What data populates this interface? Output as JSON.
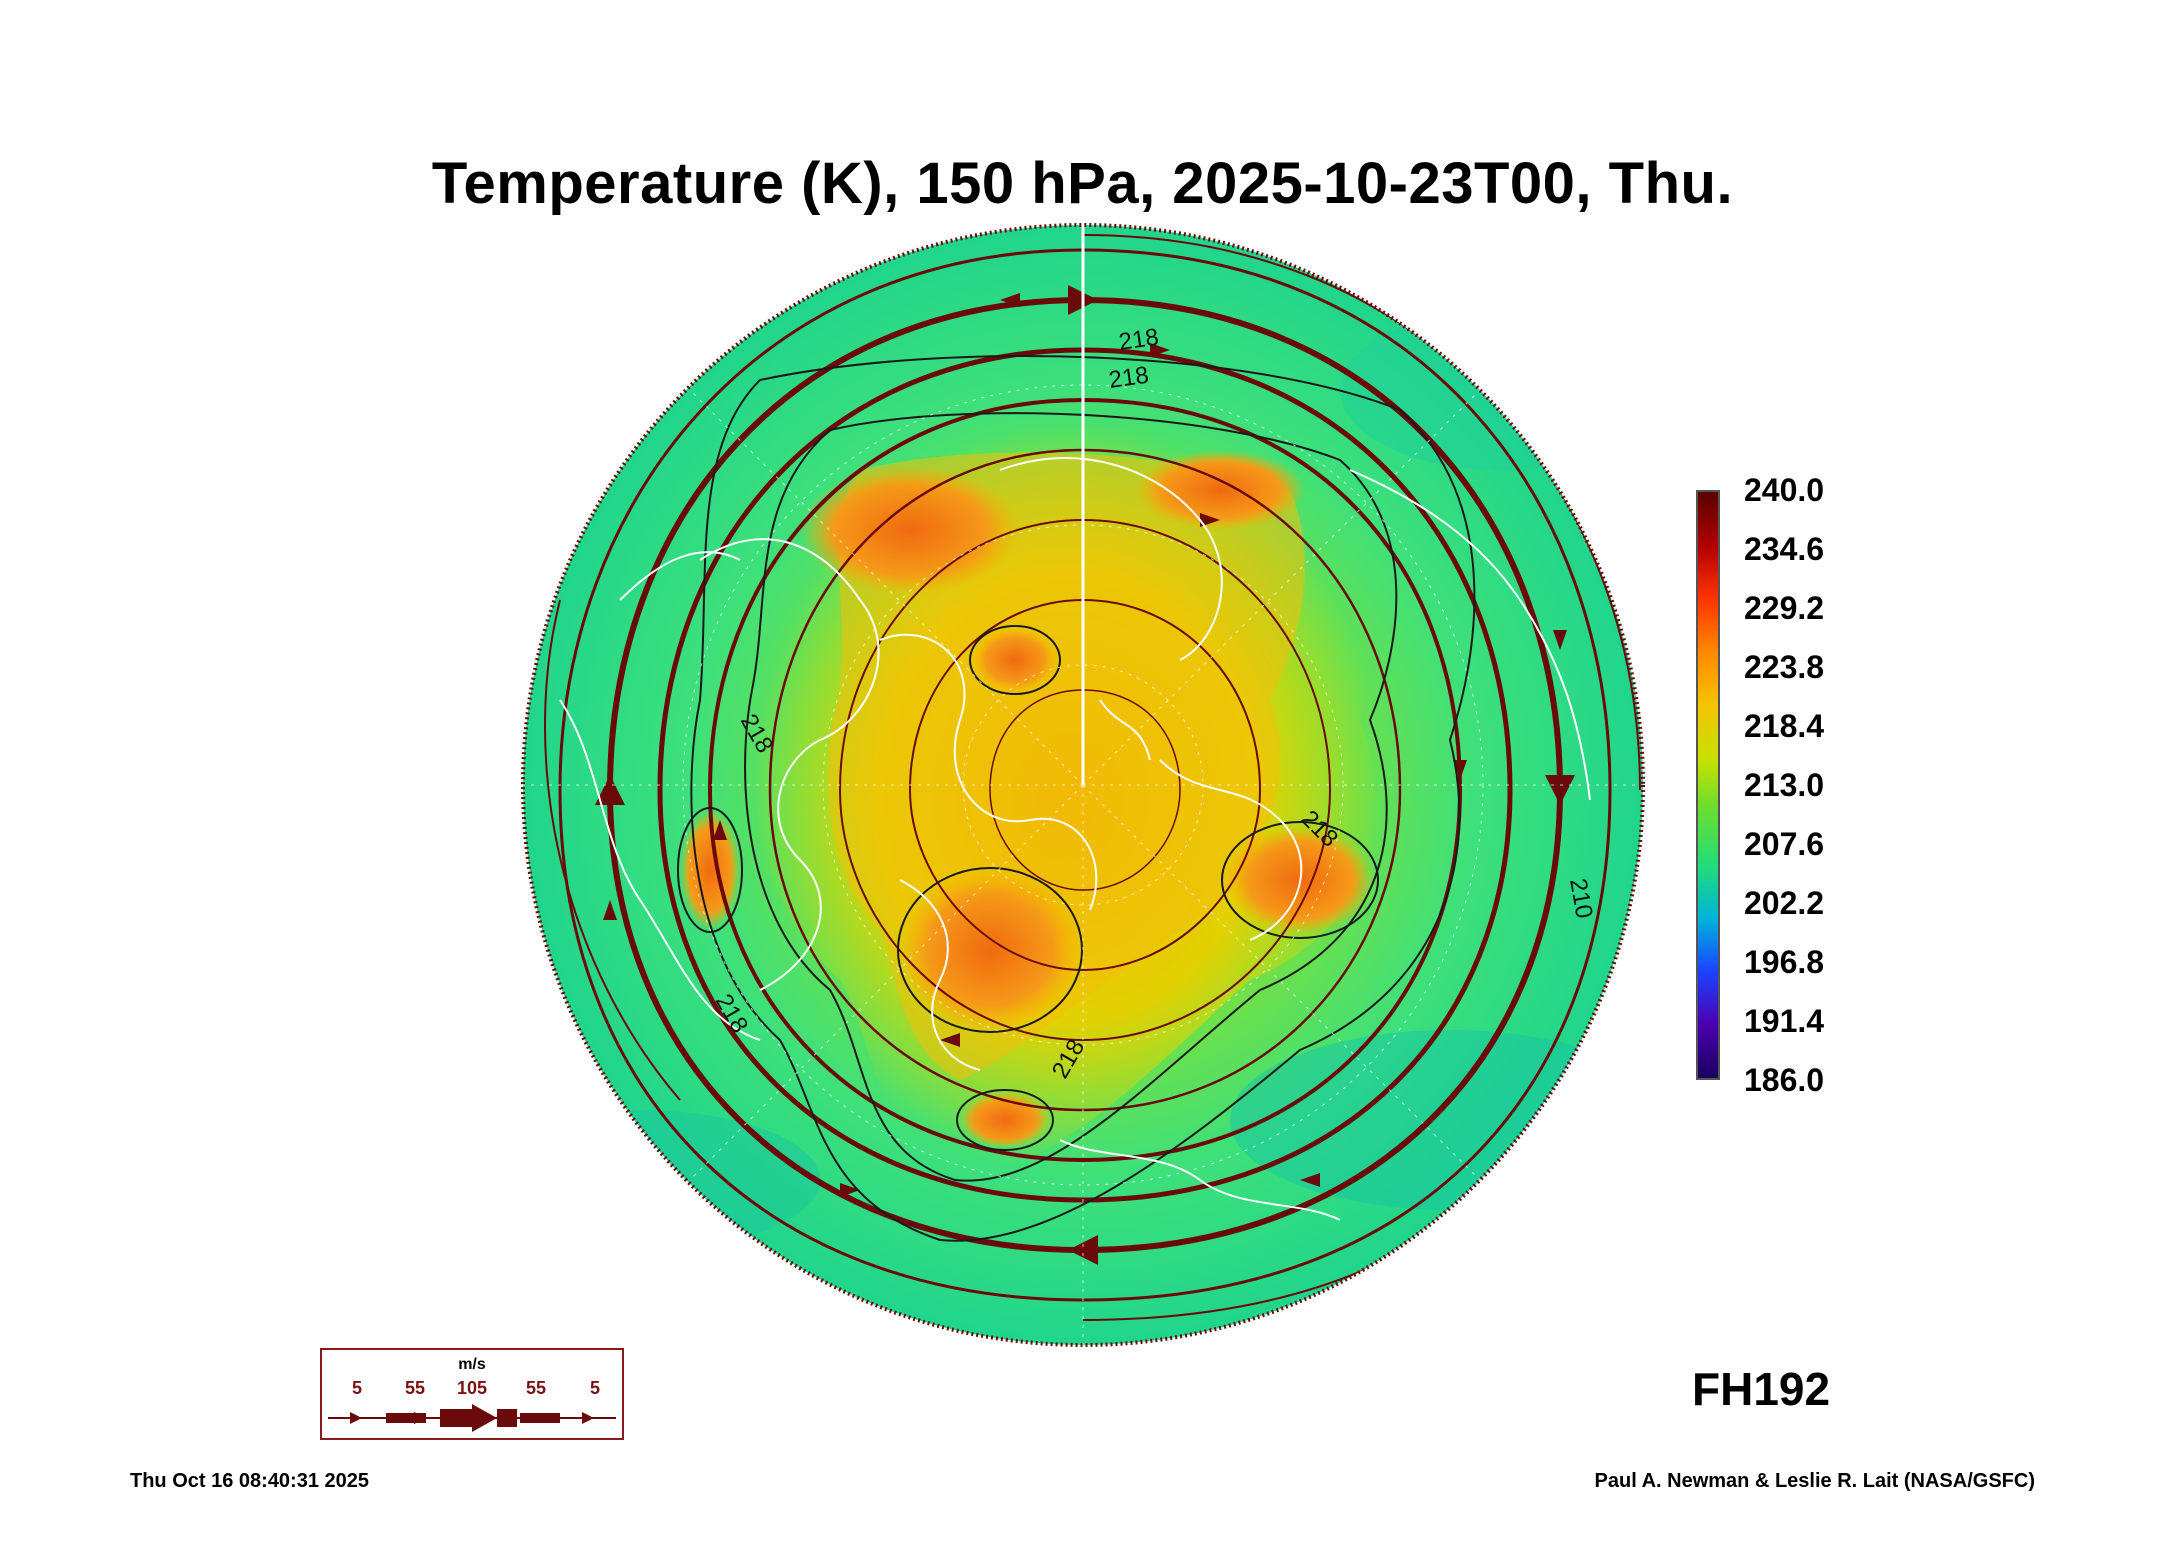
{
  "title": "Temperature (K), 150 hPa, 2025-10-23T00, Thu.",
  "colorbar": {
    "labels": [
      "240.0",
      "234.6",
      "229.2",
      "223.8",
      "218.4",
      "213.0",
      "207.6",
      "202.2",
      "196.8",
      "191.4",
      "186.0"
    ],
    "colors_top_to_bottom": [
      "#5a0000",
      "#b00000",
      "#ff3300",
      "#ff8800",
      "#f5c400",
      "#c8e000",
      "#66dd33",
      "#22dd77",
      "#00b4d8",
      "#1a44ff",
      "#4b00b0",
      "#1b0060"
    ]
  },
  "contour_labels": [
    "218",
    "218",
    "218",
    "218",
    "218",
    "218",
    "210"
  ],
  "wind_legend": {
    "unit": "m/s",
    "values": [
      "5",
      "55",
      "105",
      "55",
      "5"
    ],
    "color": "#6b0a0a"
  },
  "forecast_hour": "FH192",
  "timestamp": "Thu Oct 16 08:40:31 2025",
  "credit": "Paul A. Newman & Leslie R. Lait (NASA/GSFC)",
  "colors": {
    "background_field": "#3ddc84",
    "warm_core": "#f0a020",
    "hot_spot": "#f07010",
    "streamline": "#6b0a0a",
    "coastline": "#ffffff",
    "contour": "#1a1a1a"
  }
}
